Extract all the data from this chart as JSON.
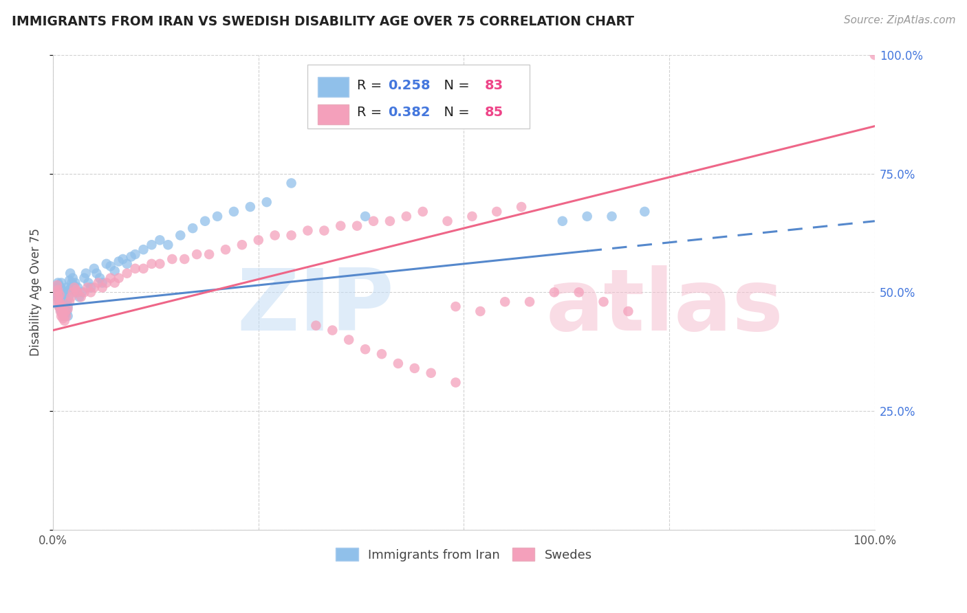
{
  "title": "IMMIGRANTS FROM IRAN VS SWEDISH DISABILITY AGE OVER 75 CORRELATION CHART",
  "source": "Source: ZipAtlas.com",
  "ylabel": "Disability Age Over 75",
  "R1": 0.258,
  "N1": 83,
  "R2": 0.382,
  "N2": 85,
  "color_blue": "#90C0EA",
  "color_pink": "#F4A0BB",
  "color_blue_line": "#5588CC",
  "color_pink_line": "#EE6688",
  "color_blue_text": "#4477DD",
  "color_pink_text": "#EE4488",
  "legend_label1": "Immigrants from Iran",
  "legend_label2": "Swedes",
  "blue_x": [
    0.005,
    0.005,
    0.005,
    0.006,
    0.006,
    0.007,
    0.007,
    0.007,
    0.008,
    0.008,
    0.009,
    0.009,
    0.009,
    0.01,
    0.01,
    0.01,
    0.01,
    0.011,
    0.011,
    0.011,
    0.012,
    0.012,
    0.012,
    0.013,
    0.013,
    0.013,
    0.014,
    0.014,
    0.015,
    0.015,
    0.015,
    0.016,
    0.017,
    0.017,
    0.018,
    0.018,
    0.019,
    0.02,
    0.02,
    0.021,
    0.022,
    0.023,
    0.024,
    0.025,
    0.026,
    0.027,
    0.028,
    0.03,
    0.032,
    0.035,
    0.038,
    0.04,
    0.043,
    0.046,
    0.05,
    0.053,
    0.057,
    0.06,
    0.065,
    0.07,
    0.075,
    0.08,
    0.085,
    0.09,
    0.095,
    0.1,
    0.11,
    0.12,
    0.13,
    0.14,
    0.155,
    0.17,
    0.185,
    0.2,
    0.22,
    0.24,
    0.26,
    0.29,
    0.38,
    0.62,
    0.65,
    0.68,
    0.72
  ],
  "blue_y": [
    0.49,
    0.51,
    0.495,
    0.505,
    0.52,
    0.48,
    0.5,
    0.515,
    0.47,
    0.485,
    0.465,
    0.475,
    0.51,
    0.46,
    0.48,
    0.495,
    0.52,
    0.47,
    0.49,
    0.505,
    0.455,
    0.475,
    0.5,
    0.46,
    0.48,
    0.5,
    0.45,
    0.47,
    0.455,
    0.475,
    0.495,
    0.51,
    0.46,
    0.48,
    0.45,
    0.47,
    0.49,
    0.505,
    0.525,
    0.54,
    0.51,
    0.52,
    0.53,
    0.515,
    0.505,
    0.52,
    0.5,
    0.51,
    0.49,
    0.5,
    0.53,
    0.54,
    0.52,
    0.51,
    0.55,
    0.54,
    0.53,
    0.52,
    0.56,
    0.555,
    0.545,
    0.565,
    0.57,
    0.56,
    0.575,
    0.58,
    0.59,
    0.6,
    0.61,
    0.6,
    0.62,
    0.635,
    0.65,
    0.66,
    0.67,
    0.68,
    0.69,
    0.73,
    0.66,
    0.65,
    0.66,
    0.66,
    0.67
  ],
  "pink_x": [
    0.005,
    0.005,
    0.005,
    0.006,
    0.006,
    0.007,
    0.008,
    0.008,
    0.009,
    0.009,
    0.01,
    0.01,
    0.011,
    0.011,
    0.012,
    0.012,
    0.013,
    0.014,
    0.015,
    0.016,
    0.018,
    0.02,
    0.022,
    0.024,
    0.026,
    0.028,
    0.03,
    0.034,
    0.038,
    0.042,
    0.046,
    0.05,
    0.055,
    0.06,
    0.065,
    0.07,
    0.075,
    0.08,
    0.09,
    0.1,
    0.11,
    0.12,
    0.13,
    0.145,
    0.16,
    0.175,
    0.19,
    0.21,
    0.23,
    0.25,
    0.27,
    0.29,
    0.31,
    0.33,
    0.35,
    0.37,
    0.39,
    0.41,
    0.43,
    0.45,
    0.48,
    0.51,
    0.54,
    0.57,
    0.32,
    0.34,
    0.36,
    0.38,
    0.4,
    0.42,
    0.44,
    0.46,
    0.49,
    0.38,
    0.42,
    0.46,
    0.49,
    0.52,
    0.55,
    0.58,
    0.61,
    0.64,
    0.67,
    0.7,
    1.0
  ],
  "pink_y": [
    0.48,
    0.5,
    0.515,
    0.49,
    0.505,
    0.47,
    0.48,
    0.495,
    0.46,
    0.475,
    0.45,
    0.465,
    0.455,
    0.47,
    0.445,
    0.46,
    0.45,
    0.44,
    0.46,
    0.45,
    0.465,
    0.48,
    0.49,
    0.5,
    0.51,
    0.505,
    0.5,
    0.49,
    0.5,
    0.51,
    0.5,
    0.51,
    0.52,
    0.51,
    0.52,
    0.53,
    0.52,
    0.53,
    0.54,
    0.55,
    0.55,
    0.56,
    0.56,
    0.57,
    0.57,
    0.58,
    0.58,
    0.59,
    0.6,
    0.61,
    0.62,
    0.62,
    0.63,
    0.63,
    0.64,
    0.64,
    0.65,
    0.65,
    0.66,
    0.67,
    0.65,
    0.66,
    0.67,
    0.68,
    0.43,
    0.42,
    0.4,
    0.38,
    0.37,
    0.35,
    0.34,
    0.33,
    0.31,
    0.93,
    0.93,
    0.93,
    0.47,
    0.46,
    0.48,
    0.48,
    0.5,
    0.5,
    0.48,
    0.46,
    1.0
  ]
}
